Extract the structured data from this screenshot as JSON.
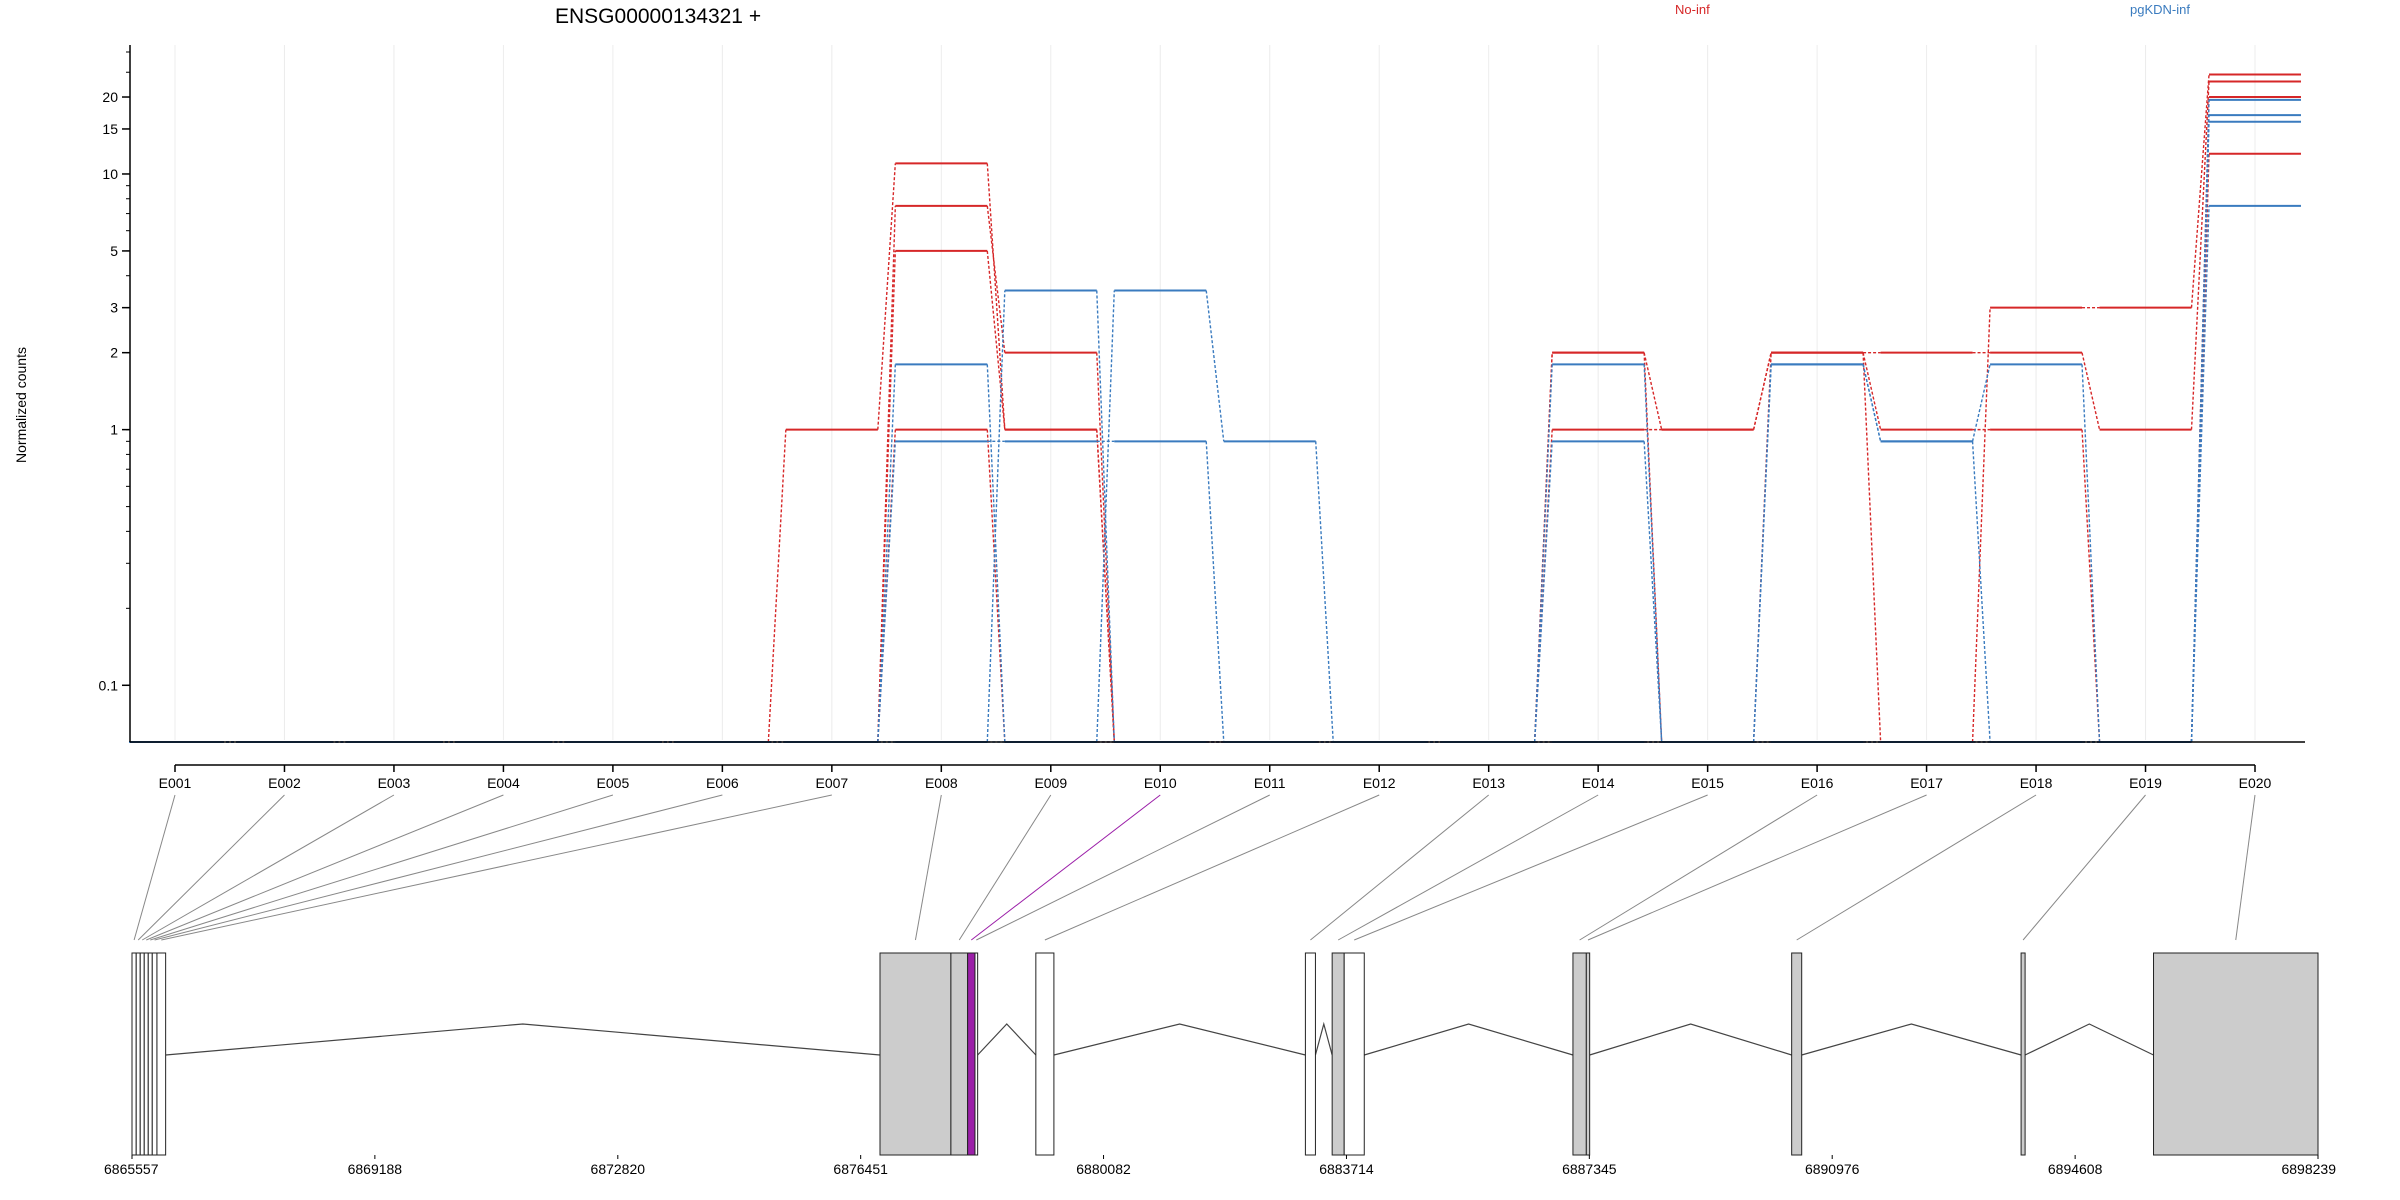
{
  "chart_data": {
    "type": "line",
    "title": "ENSG00000134321 +",
    "ylabel": "Normalized counts",
    "xlabel": "",
    "y_scale": "log",
    "ylim": [
      0.0,
      30
    ],
    "y_ticks": [
      0.1,
      1,
      2,
      3,
      5,
      10,
      15,
      20
    ],
    "y_tick_labels": [
      "0.1",
      "1",
      "2",
      "3",
      "5",
      "10",
      "15",
      "20"
    ],
    "grid": true,
    "legend_placement": "top",
    "legend": [
      {
        "name": "No-inf",
        "color": "#d62728"
      },
      {
        "name": "pgKDN-inf",
        "color": "#3a7bbf"
      }
    ],
    "categories": [
      "E001",
      "E002",
      "E003",
      "E004",
      "E005",
      "E006",
      "E007",
      "E008",
      "E009",
      "E010",
      "E011",
      "E012",
      "E013",
      "E014",
      "E015",
      "E016",
      "E017",
      "E018",
      "E019",
      "E020"
    ],
    "series": [
      {
        "group": "No-inf",
        "color": "#d62728",
        "values": [
          0,
          0,
          0,
          0,
          0,
          0,
          1,
          11,
          1,
          0,
          0,
          0,
          0,
          2,
          1,
          2,
          0,
          3,
          3,
          24.5
        ]
      },
      {
        "group": "No-inf",
        "color": "#d62728",
        "values": [
          0,
          0,
          0,
          0,
          0,
          0,
          0,
          7.5,
          2,
          0,
          0,
          0,
          0,
          1,
          1,
          2,
          2,
          2,
          1,
          23
        ]
      },
      {
        "group": "No-inf",
        "color": "#d62728",
        "values": [
          0,
          0,
          0,
          0,
          0,
          0,
          0,
          5,
          1,
          0,
          0,
          0,
          0,
          2,
          0,
          2,
          1,
          1,
          0,
          20
        ]
      },
      {
        "group": "No-inf",
        "color": "#d62728",
        "values": [
          0,
          0,
          0,
          0,
          0,
          0,
          0,
          1,
          0,
          0,
          0,
          0,
          0,
          0,
          0,
          0,
          0,
          0,
          0,
          12
        ]
      },
      {
        "group": "pgKDN-inf",
        "color": "#3a7bbf",
        "values": [
          0,
          0,
          0,
          0,
          0,
          0,
          0,
          1.8,
          0,
          3.5,
          0.9,
          0,
          0,
          1.8,
          0,
          1.8,
          0.9,
          1.8,
          0,
          19.5
        ]
      },
      {
        "group": "pgKDN-inf",
        "color": "#3a7bbf",
        "values": [
          0,
          0,
          0,
          0,
          0,
          0,
          0,
          0.9,
          0.9,
          0.9,
          0,
          0,
          0,
          0.9,
          0,
          1.8,
          0.9,
          0,
          0,
          17
        ]
      },
      {
        "group": "pgKDN-inf",
        "color": "#3a7bbf",
        "values": [
          0,
          0,
          0,
          0,
          0,
          0,
          0,
          0,
          3.5,
          0,
          0,
          0,
          0,
          0,
          0,
          0,
          0,
          0,
          0,
          16
        ]
      },
      {
        "group": "pgKDN-inf",
        "color": "#3a7bbf",
        "values": [
          0,
          0,
          0,
          0,
          0,
          0,
          0,
          0,
          0,
          0,
          0,
          0,
          0,
          0,
          0,
          0,
          0,
          0,
          0,
          7.5
        ]
      }
    ],
    "gene_model": {
      "coord_range": [
        6865557,
        6898239
      ],
      "coord_ticks": [
        6865557,
        6869188,
        6872820,
        6876451,
        6880082,
        6883714,
        6887345,
        6890976,
        6894608,
        6898239
      ],
      "coord_tick_labels": [
        "6865557",
        "6869188",
        "6872820",
        "6876451",
        "6880082",
        "6883714",
        "6887345",
        "6890976",
        "6894608",
        "6898239"
      ],
      "highlight_exon": "E010",
      "highlight_color": "#9b1fa8",
      "exons": [
        {
          "id": "E001",
          "start": 6865557,
          "end": 6865620,
          "fill": "#ffffff"
        },
        {
          "id": "E002",
          "start": 6865620,
          "end": 6865680,
          "fill": "#ffffff"
        },
        {
          "id": "E003",
          "start": 6865680,
          "end": 6865740,
          "fill": "#ffffff"
        },
        {
          "id": "E004",
          "start": 6865740,
          "end": 6865800,
          "fill": "#ffffff"
        },
        {
          "id": "E005",
          "start": 6865800,
          "end": 6865860,
          "fill": "#ffffff"
        },
        {
          "id": "E006",
          "start": 6865860,
          "end": 6865930,
          "fill": "#ffffff"
        },
        {
          "id": "E007",
          "start": 6865930,
          "end": 6866060,
          "fill": "#ffffff"
        },
        {
          "id": "E008",
          "start": 6876740,
          "end": 6877800,
          "fill": "#cccccc"
        },
        {
          "id": "E009",
          "start": 6877800,
          "end": 6878050,
          "fill": "#cccccc"
        },
        {
          "id": "E010",
          "start": 6878050,
          "end": 6878160,
          "fill": "#9b1fa8"
        },
        {
          "id": "E011",
          "start": 6878160,
          "end": 6878200,
          "fill": "#ffffff"
        },
        {
          "id": "E012",
          "start": 6879070,
          "end": 6879340,
          "fill": "#ffffff"
        },
        {
          "id": "E013",
          "start": 6883100,
          "end": 6883250,
          "fill": "#ffffff"
        },
        {
          "id": "E014",
          "start": 6883500,
          "end": 6883680,
          "fill": "#cccccc"
        },
        {
          "id": "E015",
          "start": 6883680,
          "end": 6883980,
          "fill": "#ffffff"
        },
        {
          "id": "E016",
          "start": 6887100,
          "end": 6887300,
          "fill": "#cccccc"
        },
        {
          "id": "E017",
          "start": 6887300,
          "end": 6887350,
          "fill": "#cccccc"
        },
        {
          "id": "E018",
          "start": 6890370,
          "end": 6890520,
          "fill": "#cccccc"
        },
        {
          "id": "E019",
          "start": 6893800,
          "end": 6893860,
          "fill": "#cccccc"
        },
        {
          "id": "E020",
          "start": 6895780,
          "end": 6898239,
          "fill": "#cccccc"
        }
      ]
    }
  }
}
